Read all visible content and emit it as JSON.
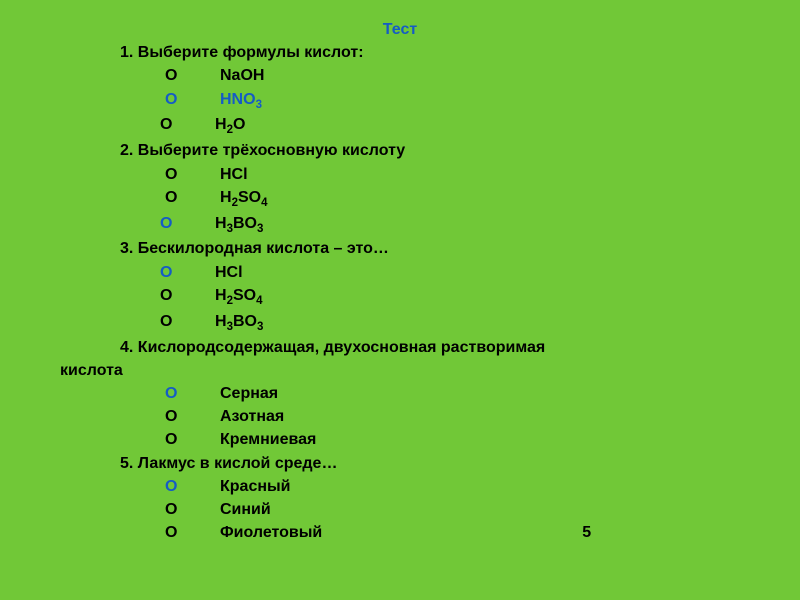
{
  "colors": {
    "background": "#71c837",
    "text": "#000000",
    "accent": "#155cc5"
  },
  "typography": {
    "font_family": "Arial, sans-serif",
    "font_size_pt": 12,
    "font_weight": "bold"
  },
  "title": "Тест",
  "questions": [
    {
      "num": "1.",
      "text": "Выберите формулы кислот:",
      "options": [
        {
          "marker": "О",
          "label_html": "NaOH",
          "highlighted": false
        },
        {
          "marker": "О",
          "label_html": "HNO<sub>3</sub>",
          "highlighted": true
        },
        {
          "marker": "О",
          "label_html": "H<sub>2</sub>O",
          "highlighted": false
        }
      ]
    },
    {
      "num": "2.",
      "text": "Выберите трёхосновную кислоту",
      "options": [
        {
          "marker": "О",
          "label_html": "HCl",
          "highlighted": false
        },
        {
          "marker": "О",
          "label_html": "H<sub>2</sub>SO<sub>4</sub>",
          "highlighted": false
        },
        {
          "marker": "О",
          "label_html": "H<sub>3</sub>BO<sub>3</sub>",
          "highlighted": true
        }
      ]
    },
    {
      "num": "3.",
      "text": "Бескилородная кислота – это…",
      "options": [
        {
          "marker": "О",
          "label_html": "HCl",
          "highlighted": true
        },
        {
          "marker": "О",
          "label_html": "H<sub>2</sub>SO<sub>4</sub>",
          "highlighted": false
        },
        {
          "marker": "О",
          "label_html": "H<sub>3</sub>BO<sub>3</sub>",
          "highlighted": false
        }
      ]
    },
    {
      "num": "4.",
      "text_line1": "Кислородсодержащая, двухосновная растворимая",
      "text_line2": "кислота",
      "options": [
        {
          "marker": "О",
          "label_html": "Серная",
          "highlighted": true
        },
        {
          "marker": "О",
          "label_html": "Азотная",
          "highlighted": false
        },
        {
          "marker": "О",
          "label_html": "Кремниевая",
          "highlighted": false
        }
      ]
    },
    {
      "num": "5.",
      "text": "Лакмус в кислой среде…",
      "options": [
        {
          "marker": "О",
          "label_html": "Красный",
          "highlighted": true
        },
        {
          "marker": "О",
          "label_html": "Синий",
          "highlighted": false
        },
        {
          "marker": "О",
          "label_html": "Фиолетовый",
          "highlighted": false
        }
      ]
    }
  ],
  "score": "5"
}
